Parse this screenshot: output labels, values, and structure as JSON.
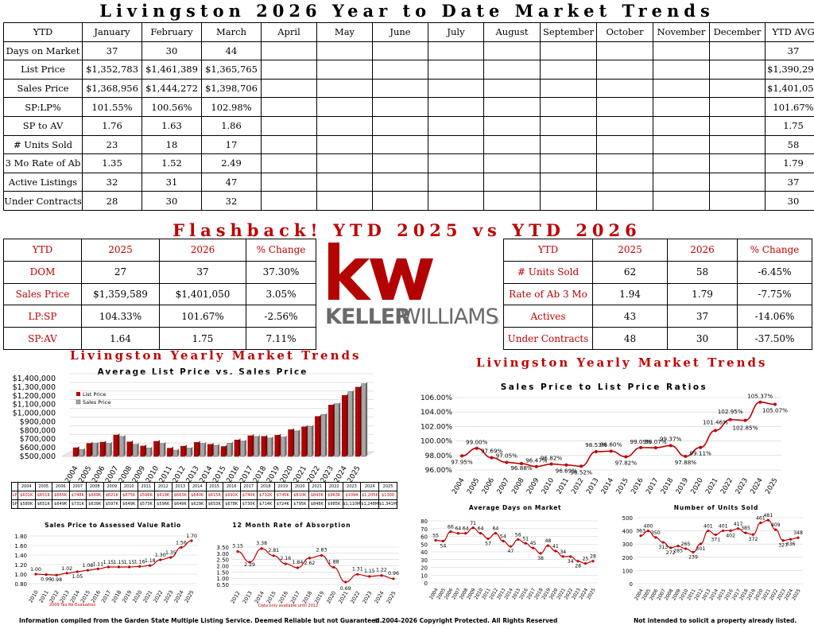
{
  "title": "Livingston 2026 Year to Date Market Trends",
  "ytd_table": {
    "columns": [
      "YTD",
      "January",
      "February",
      "March",
      "April",
      "May",
      "June",
      "July",
      "August",
      "September",
      "October",
      "November",
      "December",
      "YTD AVG"
    ],
    "rows": [
      {
        "label": "Days on Market",
        "values": [
          "37",
          "30",
          "44",
          "",
          "",
          "",
          "",
          "",
          "",
          "",
          "",
          ""
        ],
        "avg": "37"
      },
      {
        "label": "List Price",
        "values": [
          "$1,352,783",
          "$1,461,389",
          "$1,365,765",
          "",
          "",
          "",
          "",
          "",
          "",
          "",
          "",
          ""
        ],
        "avg": "$1,390,293"
      },
      {
        "label": "Sales Price",
        "values": [
          "$1,368,956",
          "$1,444,272",
          "$1,398,706",
          "",
          "",
          "",
          "",
          "",
          "",
          "",
          "",
          ""
        ],
        "avg": "$1,401,050"
      },
      {
        "label": "SP:LP%",
        "values": [
          "101.55%",
          "100.56%",
          "102.98%",
          "",
          "",
          "",
          "",
          "",
          "",
          "",
          "",
          ""
        ],
        "avg": "101.67%"
      },
      {
        "label": "SP to AV",
        "values": [
          "1.76",
          "1.63",
          "1.86",
          "",
          "",
          "",
          "",
          "",
          "",
          "",
          "",
          ""
        ],
        "avg": "1.75"
      },
      {
        "label": "# Units Sold",
        "values": [
          "23",
          "18",
          "17",
          "",
          "",
          "",
          "",
          "",
          "",
          "",
          "",
          ""
        ],
        "avg": "58"
      },
      {
        "label": "3 Mo Rate of Ab",
        "values": [
          "1.35",
          "1.52",
          "2.49",
          "",
          "",
          "",
          "",
          "",
          "",
          "",
          "",
          ""
        ],
        "avg": "1.79"
      },
      {
        "label": "Active Listings",
        "values": [
          "32",
          "31",
          "47",
          "",
          "",
          "",
          "",
          "",
          "",
          "",
          "",
          ""
        ],
        "avg": "37"
      },
      {
        "label": "Under Contracts",
        "values": [
          "28",
          "30",
          "32",
          "",
          "",
          "",
          "",
          "",
          "",
          "",
          "",
          ""
        ],
        "avg": "30"
      }
    ]
  },
  "flashback_title": "Flashback!  YTD 2025 vs YTD 2026",
  "compare_left": {
    "header": [
      "YTD",
      "2025",
      "2026",
      "% Change"
    ],
    "rows": [
      [
        "DOM",
        "27",
        "37",
        "37.30%"
      ],
      [
        "Sales Price",
        "$1,359,589",
        "$1,401,050",
        "3.05%"
      ],
      [
        "LP:SP",
        "104.33%",
        "101.67%",
        "-2.56%"
      ],
      [
        "SP:AV",
        "1.64",
        "1.75",
        "7.11%"
      ]
    ]
  },
  "compare_right": {
    "header": [
      "YTD",
      "2025",
      "2026",
      "% Change"
    ],
    "rows": [
      [
        "# Units Sold",
        "62",
        "58",
        "-6.45%"
      ],
      [
        "Rate of Ab 3 Mo",
        "1.94",
        "1.79",
        "-7.75%"
      ],
      [
        "Actives",
        "43",
        "37",
        "-14.06%"
      ],
      [
        "Under Contracts",
        "48",
        "30",
        "-37.50%"
      ]
    ]
  },
  "logo": {
    "mark": "kw",
    "wordmark_bold": "KELLER",
    "wordmark_light": "WILLIAMS",
    "registered": "®",
    "color": "#b40101"
  },
  "yearly_title_left": "Livingston Yearly Market Trends",
  "yearly_title_right": "Livingston Yearly Market Trends",
  "lp_sp_table": {
    "years": [
      "2004",
      "2005",
      "2006",
      "2007",
      "2008",
      "2009",
      "2010",
      "2011",
      "2012",
      "2013",
      "2014",
      "2015",
      "2016",
      "2017",
      "2018",
      "2019",
      "2020",
      "2021",
      "2022",
      "2023",
      "2024",
      "2025"
    ],
    "lp_label": "LP",
    "sp_label": "SP",
    "lp": [
      "$601K",
      "$651K",
      "$665K",
      "$748K",
      "$669K",
      "$621K",
      "$675K",
      "$596K",
      "$619K",
      "$663K",
      "$640K",
      "$615K",
      "$691K",
      "$740K",
      "$732K",
      "$745K",
      "$810K",
      "$843K",
      "$963K",
      "$1094",
      "$1,205K",
      "$1300"
    ],
    "sp": [
      "$580K",
      "$651K",
      "$649K",
      "$731K",
      "$639K",
      "$597K",
      "$649K",
      "$573K",
      "$596K",
      "$649K",
      "$629K",
      "$653K",
      "$678K",
      "$730K",
      "$714K",
      "$724K",
      "$795K",
      "$848K",
      "$985K",
      "$1,110M",
      "$1,248M",
      "$1,341M"
    ]
  },
  "colors": {
    "red": "#c00000",
    "bar_red": "#b40101",
    "bar_gray": "#a6a6a6",
    "grid": "#d0d0d0"
  },
  "chart_data": [
    {
      "type": "bar",
      "title": "Average List Price vs. Sales Price",
      "categories": [
        "2004",
        "2005",
        "2006",
        "2007",
        "2008",
        "2009",
        "2010",
        "2011",
        "2012",
        "2013",
        "2014",
        "2015",
        "2016",
        "2017",
        "2018",
        "2019",
        "2020",
        "2021",
        "2022",
        "2023",
        "2024",
        "2025"
      ],
      "series": [
        {
          "name": "List Price",
          "values": [
            601,
            651,
            665,
            748,
            669,
            621,
            675,
            596,
            619,
            663,
            640,
            615,
            691,
            740,
            732,
            745,
            810,
            843,
            963,
            1094,
            1205,
            1300
          ]
        },
        {
          "name": "Sales Price",
          "values": [
            580,
            651,
            649,
            731,
            639,
            597,
            649,
            573,
            596,
            649,
            629,
            653,
            678,
            730,
            714,
            724,
            795,
            848,
            985,
            1110,
            1248,
            1341
          ]
        }
      ],
      "ylim": [
        500000,
        1400000
      ],
      "yticks": [
        "$500,000",
        "$600,000",
        "$700,000",
        "$800,000",
        "$900,000",
        "$1,000,000",
        "$1,100,000",
        "$1,200,000",
        "$1,300,000",
        "$1,400,000"
      ],
      "legend": "top-left"
    },
    {
      "type": "line",
      "title": "Sales Price to List Price Ratios",
      "x": [
        "2004",
        "2005",
        "2006",
        "2007",
        "2008",
        "2009",
        "2010",
        "2011",
        "2012",
        "2013",
        "2014",
        "2015",
        "2016",
        "2017",
        "2018",
        "2019",
        "2020",
        "2021",
        "2022",
        "2023",
        "2024",
        "2025"
      ],
      "values": [
        97.95,
        99.0,
        97.69,
        97.05,
        96.88,
        96.47,
        96.82,
        96.69,
        96.52,
        98.53,
        98.6,
        97.82,
        99.09,
        99.07,
        99.37,
        97.88,
        99.11,
        101.46,
        102.95,
        102.85,
        105.37,
        105.07
      ],
      "labels": [
        "97.95%",
        "99.00%",
        "97.69%",
        "97.05%",
        "96.88%",
        "96.47%",
        "96.82%",
        "96.69%",
        "96.52%",
        "98.53%",
        "98.60%",
        "97.82%",
        "99.09%",
        "99.07%",
        "99.37%",
        "97.88%",
        "99.11%",
        "101.46%",
        "102.95%",
        "102.85%",
        "105.37%",
        "105.07%"
      ],
      "ylim": [
        96,
        106
      ],
      "yticks": [
        "96.00%",
        "98.00%",
        "100.00%",
        "102.00%",
        "104.00%",
        "106.00%"
      ]
    },
    {
      "type": "line",
      "title": "Sales Price to Assessed Value Ratio",
      "x": [
        "2010",
        "2011",
        "2012",
        "2013",
        "2014",
        "2015",
        "2016",
        "2017",
        "2018",
        "2019",
        "2020",
        "2021",
        "2022",
        "2023",
        "2024",
        "2025"
      ],
      "values": [
        1.0,
        0.99,
        0.98,
        1.02,
        1.05,
        1.08,
        1.11,
        1.15,
        1.15,
        1.15,
        1.16,
        1.18,
        1.3,
        1.35,
        1.56,
        1.7
      ],
      "labels": [
        "1.00",
        "0.99",
        "0.98",
        "1.02",
        "1.05",
        "1.08",
        "1.11",
        "1.15",
        "1.15",
        "1.15",
        "1.16",
        "1.18",
        "1.30",
        "1.35",
        "1.56",
        "1.70"
      ],
      "ylim": [
        0.8,
        1.8
      ],
      "yticks": [
        "0.80",
        "1.00",
        "1.20",
        "1.40",
        "1.60",
        "1.80"
      ],
      "note": "2009 Tax Re-Evaluation"
    },
    {
      "type": "line",
      "title": "12 Month Rate of Absorption",
      "x": [
        "2012",
        "2013",
        "2014",
        "2015",
        "2016",
        "2017",
        "2018",
        "2019",
        "2020",
        "2021",
        "2022",
        "2023",
        "2024",
        "2025"
      ],
      "values": [
        3.15,
        2.29,
        3.38,
        2.81,
        2.16,
        1.84,
        2.62,
        2.83,
        1.88,
        0.69,
        1.31,
        1.15,
        1.22,
        0.96
      ],
      "labels": [
        "3.15",
        "2.29",
        "3.38",
        "2.81",
        "2.16",
        "1.84",
        "2.62",
        "2.83",
        "1.88",
        "0.69",
        "1.31",
        "1.15",
        "1.22",
        "0.96"
      ],
      "ylim": [
        0.5,
        3.5
      ],
      "yticks": [
        "0.50",
        "1.00",
        "1.50",
        "2.00",
        "2.50",
        "3.00",
        "3.50"
      ],
      "note": "Data only available until 2012"
    },
    {
      "type": "line",
      "title": "Average Days on Market",
      "x": [
        "2004",
        "2005",
        "2006",
        "2007",
        "2008",
        "2009",
        "2010",
        "2011",
        "2012",
        "2013",
        "2014",
        "2015",
        "2016",
        "2017",
        "2018",
        "2019",
        "2020",
        "2021",
        "2022",
        "2023",
        "2024",
        "2025"
      ],
      "values": [
        55,
        54,
        66,
        64,
        64,
        71,
        64,
        57,
        64,
        54,
        47,
        56,
        51,
        45,
        38,
        48,
        41,
        34,
        34,
        28,
        25,
        28
      ],
      "labels": [
        "55",
        "54",
        "66",
        "64",
        "64",
        "71",
        "64",
        "57",
        "64",
        "54",
        "47",
        "56",
        "51",
        "45",
        "38",
        "48",
        "41",
        "34",
        "34",
        "28",
        "25",
        "28"
      ],
      "ylim": [
        0,
        80
      ],
      "yticks": [
        "0",
        "10",
        "20",
        "30",
        "40",
        "50",
        "60",
        "70",
        "80"
      ]
    },
    {
      "type": "line",
      "title": "Number of Units Sold",
      "x": [
        "2004",
        "2005",
        "2006",
        "2007",
        "2008",
        "2009",
        "2010",
        "2011",
        "2012",
        "2013",
        "2014",
        "2015",
        "2016",
        "2017",
        "2018",
        "2019",
        "2020",
        "2021",
        "2022",
        "2023",
        "2024",
        "2025"
      ],
      "values": [
        363,
        400,
        350,
        313,
        272,
        285,
        265,
        239,
        301,
        401,
        371,
        401,
        402,
        417,
        385,
        372,
        461,
        481,
        409,
        327,
        336,
        348
      ],
      "labels": [
        "363",
        "400",
        "350",
        "313",
        "272",
        "285",
        "265",
        "239",
        "301",
        "401",
        "371",
        "401",
        "402",
        "417",
        "385",
        "372",
        "461",
        "481",
        "409",
        "327",
        "336",
        "348"
      ],
      "ylim": [
        0,
        500
      ],
      "yticks": [
        "0",
        "100",
        "200",
        "300",
        "400",
        "500"
      ]
    }
  ],
  "footer": {
    "left": "Information compiled from the Garden State Multiple Listing Service.  Deemed Reliable but not Guaranteed.",
    "center": "© 2004-2026 Copyright Protected.  All Rights Reserved",
    "right": "Not intended to solicit a property already listed."
  }
}
